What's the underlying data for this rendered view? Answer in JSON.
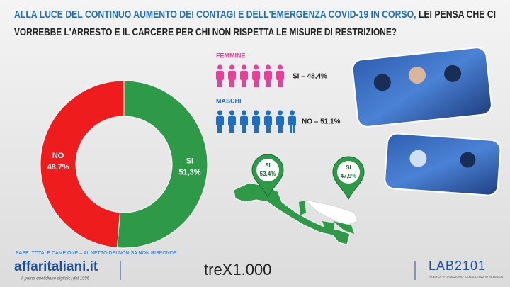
{
  "title": {
    "highlight": "ALLA LUCE DEL CONTINUO AUMENTO DEI CONTAGI E DELL'EMERGENZA COVID-19 IN CORSO,",
    "line1_rest": "LEI PENSA CHE CI",
    "line2": "VORREBBE L'ARRESTO E IL CARCERE PER CHI NON RISPETTA LE MISURE DI RESTRIZIONE?"
  },
  "chart_data": {
    "type": "pie",
    "categories": [
      "NO",
      "SI"
    ],
    "values": [
      48.7,
      51.3
    ],
    "value_labels": [
      "48,7%",
      "51,3%"
    ],
    "colors": [
      "#ee1c1c",
      "#2e9a48"
    ],
    "donut": true
  },
  "gender": {
    "female": {
      "label": "FEMMINE",
      "result": "SI – 48,4%"
    },
    "male": {
      "label": "MASCHI",
      "result": "NO – 51,1%"
    }
  },
  "map_pins": [
    {
      "answer": "SI",
      "share": "53,4%"
    },
    {
      "answer": "SI",
      "share": "47,9%"
    }
  ],
  "base": "BASE: TOTALE CAMPIONE – AL NETTO DEI NON SA NON RISPONDE",
  "footer": {
    "brand": "affaritaliani.it",
    "tagline": "Il primo quotidiano digitale, dal 1996",
    "partner": "treX1.000",
    "lab": "LAB2101",
    "lab_tagline": "RICERCA · FORMAZIONE · CONSULENZA STRATEGICA"
  }
}
